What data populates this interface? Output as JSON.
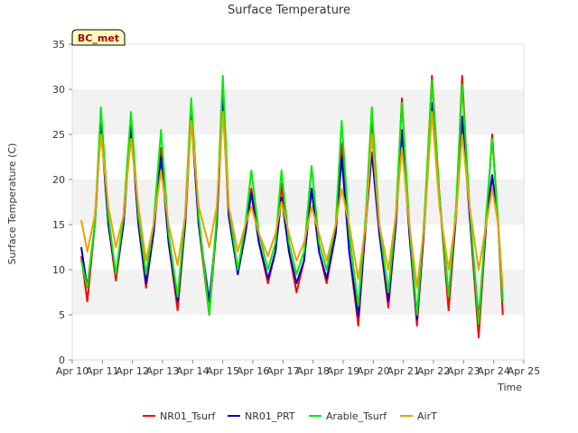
{
  "chart_data": {
    "type": "line",
    "title": "Surface Temperature",
    "xlabel": "Time",
    "ylabel": "Surface Temperature (C)",
    "site_badge": "BC_met",
    "ylim": [
      0,
      35
    ],
    "yticks": [
      0,
      5,
      10,
      15,
      20,
      25,
      30,
      35
    ],
    "xlim": [
      10,
      25
    ],
    "xticks": [
      {
        "x": 10,
        "label": "Apr 10"
      },
      {
        "x": 11,
        "label": "Apr 11"
      },
      {
        "x": 12,
        "label": "Apr 12"
      },
      {
        "x": 13,
        "label": "Apr 13"
      },
      {
        "x": 14,
        "label": "Apr 14"
      },
      {
        "x": 15,
        "label": "Apr 15"
      },
      {
        "x": 16,
        "label": "Apr 16"
      },
      {
        "x": 17,
        "label": "Apr 17"
      },
      {
        "x": 18,
        "label": "Apr 18"
      },
      {
        "x": 19,
        "label": "Apr 19"
      },
      {
        "x": 20,
        "label": "Apr 20"
      },
      {
        "x": 21,
        "label": "Apr 21"
      },
      {
        "x": 22,
        "label": "Apr 22"
      },
      {
        "x": 23,
        "label": "Apr 23"
      },
      {
        "x": 24,
        "label": "Apr 24"
      },
      {
        "x": 25,
        "label": "Apr 25"
      }
    ],
    "grid": "horizontal bands",
    "legend_position": "bottom",
    "series": [
      {
        "name": "NR01_Tsurf",
        "color": "#ff0000",
        "points": [
          [
            10.3,
            11.5
          ],
          [
            10.5,
            6.5
          ],
          [
            10.75,
            15
          ],
          [
            10.95,
            27
          ],
          [
            11.2,
            15
          ],
          [
            11.45,
            8.8
          ],
          [
            11.7,
            15
          ],
          [
            11.95,
            26.5
          ],
          [
            12.2,
            15
          ],
          [
            12.45,
            8
          ],
          [
            12.7,
            14
          ],
          [
            12.95,
            23.5
          ],
          [
            13.2,
            13
          ],
          [
            13.5,
            5.5
          ],
          [
            13.75,
            15
          ],
          [
            13.95,
            27
          ],
          [
            14.2,
            15
          ],
          [
            14.55,
            5
          ],
          [
            14.8,
            15
          ],
          [
            15.0,
            28.5
          ],
          [
            15.2,
            16
          ],
          [
            15.5,
            9.5
          ],
          [
            15.75,
            14
          ],
          [
            15.95,
            19
          ],
          [
            16.2,
            13
          ],
          [
            16.5,
            8.5
          ],
          [
            16.75,
            12
          ],
          [
            16.95,
            19.5
          ],
          [
            17.2,
            12
          ],
          [
            17.45,
            7.5
          ],
          [
            17.7,
            11
          ],
          [
            17.95,
            19
          ],
          [
            18.2,
            12
          ],
          [
            18.45,
            8.5
          ],
          [
            18.75,
            14
          ],
          [
            18.95,
            24
          ],
          [
            19.2,
            12
          ],
          [
            19.5,
            3.8
          ],
          [
            19.75,
            15
          ],
          [
            19.95,
            27
          ],
          [
            20.2,
            14
          ],
          [
            20.5,
            5.8
          ],
          [
            20.75,
            15
          ],
          [
            20.95,
            29
          ],
          [
            21.2,
            14
          ],
          [
            21.45,
            3.8
          ],
          [
            21.7,
            15
          ],
          [
            21.95,
            31.5
          ],
          [
            22.2,
            18
          ],
          [
            22.5,
            5.5
          ],
          [
            22.75,
            16
          ],
          [
            22.95,
            31.5
          ],
          [
            23.2,
            16
          ],
          [
            23.5,
            2.5
          ],
          [
            23.75,
            15
          ],
          [
            23.95,
            25
          ],
          [
            24.15,
            15
          ],
          [
            24.3,
            5
          ]
        ]
      },
      {
        "name": "NR01_PRT",
        "color": "#0000cc",
        "points": [
          [
            10.3,
            12.5
          ],
          [
            10.5,
            8
          ],
          [
            10.75,
            15
          ],
          [
            10.95,
            26
          ],
          [
            11.2,
            15
          ],
          [
            11.45,
            9.5
          ],
          [
            11.7,
            15
          ],
          [
            11.95,
            26
          ],
          [
            12.2,
            15
          ],
          [
            12.45,
            8.5
          ],
          [
            12.7,
            14
          ],
          [
            12.95,
            22.5
          ],
          [
            13.2,
            13
          ],
          [
            13.5,
            6.5
          ],
          [
            13.75,
            15
          ],
          [
            13.95,
            27.5
          ],
          [
            14.2,
            15
          ],
          [
            14.55,
            6.5
          ],
          [
            14.8,
            15
          ],
          [
            15.0,
            30
          ],
          [
            15.2,
            16
          ],
          [
            15.5,
            9.5
          ],
          [
            15.75,
            14
          ],
          [
            15.95,
            18.5
          ],
          [
            16.2,
            13
          ],
          [
            16.5,
            9
          ],
          [
            16.75,
            12
          ],
          [
            16.95,
            18
          ],
          [
            17.2,
            12
          ],
          [
            17.45,
            8.5
          ],
          [
            17.7,
            11
          ],
          [
            17.95,
            19
          ],
          [
            18.2,
            12
          ],
          [
            18.45,
            9
          ],
          [
            18.75,
            14
          ],
          [
            18.95,
            22.5
          ],
          [
            19.2,
            12
          ],
          [
            19.5,
            4.8
          ],
          [
            19.75,
            15
          ],
          [
            19.95,
            23
          ],
          [
            20.2,
            14
          ],
          [
            20.5,
            6.5
          ],
          [
            20.75,
            15
          ],
          [
            20.95,
            25.5
          ],
          [
            21.2,
            14
          ],
          [
            21.45,
            4.5
          ],
          [
            21.7,
            15
          ],
          [
            21.95,
            28.5
          ],
          [
            22.2,
            18
          ],
          [
            22.5,
            7
          ],
          [
            22.75,
            16
          ],
          [
            22.95,
            27
          ],
          [
            23.2,
            16
          ],
          [
            23.5,
            4.5
          ],
          [
            23.75,
            15
          ],
          [
            23.95,
            20.5
          ],
          [
            24.15,
            15
          ],
          [
            24.3,
            6.5
          ]
        ]
      },
      {
        "name": "Arable_Tsurf",
        "color": "#00ee00",
        "points": [
          [
            10.3,
            11
          ],
          [
            10.5,
            8
          ],
          [
            10.75,
            15
          ],
          [
            10.95,
            28
          ],
          [
            11.2,
            16
          ],
          [
            11.45,
            9.5
          ],
          [
            11.7,
            16
          ],
          [
            11.95,
            27.5
          ],
          [
            12.2,
            16
          ],
          [
            12.45,
            9.5
          ],
          [
            12.7,
            15
          ],
          [
            12.95,
            25.5
          ],
          [
            13.2,
            14
          ],
          [
            13.5,
            7
          ],
          [
            13.75,
            16
          ],
          [
            13.95,
            29
          ],
          [
            14.2,
            16
          ],
          [
            14.55,
            5
          ],
          [
            14.8,
            16
          ],
          [
            15.0,
            31.5
          ],
          [
            15.2,
            17
          ],
          [
            15.5,
            10
          ],
          [
            15.75,
            15
          ],
          [
            15.95,
            21
          ],
          [
            16.2,
            14
          ],
          [
            16.5,
            10
          ],
          [
            16.75,
            13
          ],
          [
            16.95,
            21
          ],
          [
            17.2,
            13
          ],
          [
            17.45,
            9.5
          ],
          [
            17.7,
            12
          ],
          [
            17.95,
            21.5
          ],
          [
            18.2,
            13
          ],
          [
            18.45,
            10
          ],
          [
            18.75,
            15
          ],
          [
            18.95,
            26.5
          ],
          [
            19.2,
            14
          ],
          [
            19.5,
            6
          ],
          [
            19.75,
            16
          ],
          [
            19.95,
            28
          ],
          [
            20.2,
            15
          ],
          [
            20.5,
            7.5
          ],
          [
            20.75,
            16
          ],
          [
            20.95,
            28.5
          ],
          [
            21.2,
            15
          ],
          [
            21.45,
            5
          ],
          [
            21.7,
            16
          ],
          [
            21.95,
            31
          ],
          [
            22.2,
            18
          ],
          [
            22.5,
            7
          ],
          [
            22.75,
            17
          ],
          [
            22.95,
            30.5
          ],
          [
            23.2,
            17
          ],
          [
            23.5,
            4
          ],
          [
            23.75,
            16
          ],
          [
            23.95,
            24.5
          ],
          [
            24.15,
            15
          ],
          [
            24.3,
            6.5
          ]
        ]
      },
      {
        "name": "AirT",
        "color": "#f0a000",
        "points": [
          [
            10.3,
            15.5
          ],
          [
            10.5,
            12
          ],
          [
            10.75,
            16
          ],
          [
            10.95,
            25
          ],
          [
            11.2,
            17
          ],
          [
            11.45,
            12.5
          ],
          [
            11.7,
            16
          ],
          [
            11.95,
            24.5
          ],
          [
            12.2,
            17
          ],
          [
            12.45,
            11
          ],
          [
            12.7,
            15
          ],
          [
            12.95,
            21
          ],
          [
            13.2,
            15
          ],
          [
            13.5,
            10.5
          ],
          [
            13.75,
            16
          ],
          [
            13.95,
            26.5
          ],
          [
            14.2,
            17
          ],
          [
            14.55,
            12.5
          ],
          [
            14.8,
            17
          ],
          [
            15.0,
            27.5
          ],
          [
            15.2,
            17
          ],
          [
            15.5,
            12
          ],
          [
            15.75,
            15
          ],
          [
            15.95,
            17
          ],
          [
            16.2,
            14
          ],
          [
            16.5,
            11.5
          ],
          [
            16.75,
            14
          ],
          [
            16.95,
            17.5
          ],
          [
            17.2,
            14
          ],
          [
            17.45,
            11
          ],
          [
            17.7,
            13
          ],
          [
            17.95,
            17
          ],
          [
            18.2,
            14
          ],
          [
            18.45,
            11
          ],
          [
            18.75,
            15
          ],
          [
            18.95,
            19
          ],
          [
            19.2,
            15
          ],
          [
            19.5,
            9
          ],
          [
            19.75,
            15
          ],
          [
            19.95,
            25
          ],
          [
            20.2,
            15
          ],
          [
            20.5,
            10
          ],
          [
            20.75,
            16
          ],
          [
            20.95,
            23.5
          ],
          [
            21.2,
            15
          ],
          [
            21.45,
            8
          ],
          [
            21.7,
            15
          ],
          [
            21.95,
            27.5
          ],
          [
            22.2,
            17
          ],
          [
            22.5,
            10
          ],
          [
            22.75,
            16
          ],
          [
            22.95,
            25
          ],
          [
            23.2,
            17
          ],
          [
            23.5,
            10
          ],
          [
            23.75,
            15
          ],
          [
            23.95,
            19
          ],
          [
            24.15,
            15
          ],
          [
            24.3,
            8
          ]
        ]
      }
    ]
  }
}
